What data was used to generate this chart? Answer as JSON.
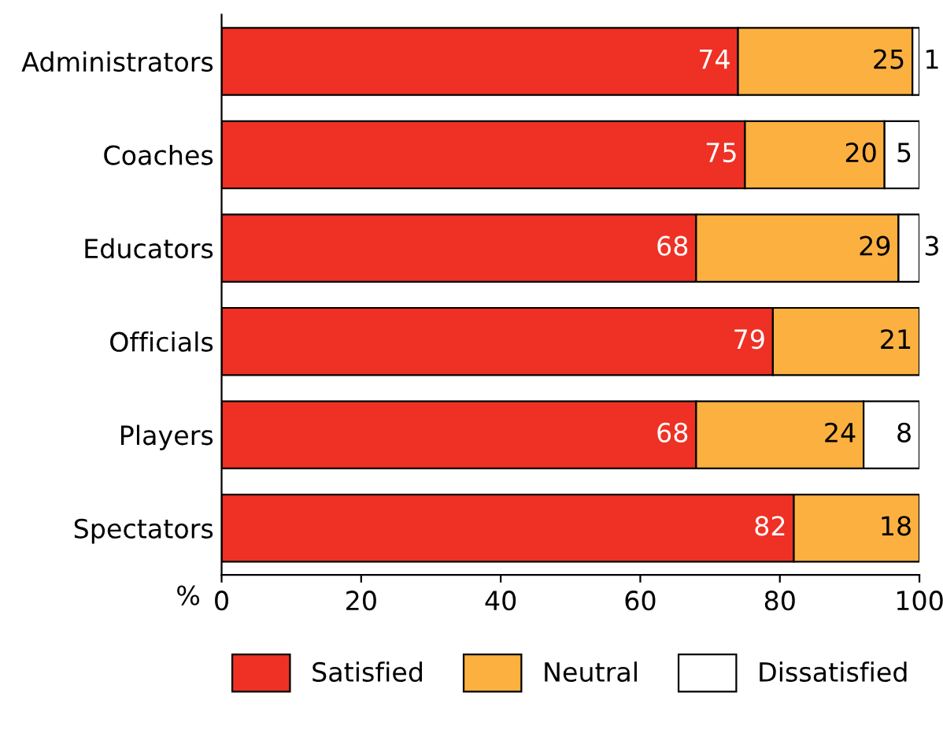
{
  "chart_data": {
    "type": "bar",
    "orientation": "horizontal",
    "stacked": true,
    "xlabel": "%",
    "categories": [
      "Administrators",
      "Coaches",
      "Educators",
      "Officials",
      "Players",
      "Spectators"
    ],
    "series": [
      {
        "name": "Satisfied",
        "color": "#ee3124",
        "values": [
          74,
          75,
          68,
          79,
          68,
          82
        ],
        "value_labels": [
          "74",
          "75",
          "68",
          "79",
          "68",
          "82"
        ]
      },
      {
        "name": "Neutral",
        "color": "#fbb040",
        "values": [
          25,
          20,
          29,
          21,
          24,
          18
        ],
        "value_labels": [
          "25",
          "20",
          "29",
          "21",
          "24",
          "18"
        ]
      },
      {
        "name": "Dissatisfied",
        "color": "#ffffff",
        "values": [
          1,
          5,
          3,
          null,
          8,
          null
        ],
        "value_labels": [
          "1",
          "5",
          "3",
          null,
          "8",
          null
        ]
      }
    ],
    "xlim": [
      0,
      100
    ],
    "xticks": [
      0,
      20,
      40,
      60,
      80,
      100
    ],
    "grid": false,
    "legend": "bottom"
  }
}
